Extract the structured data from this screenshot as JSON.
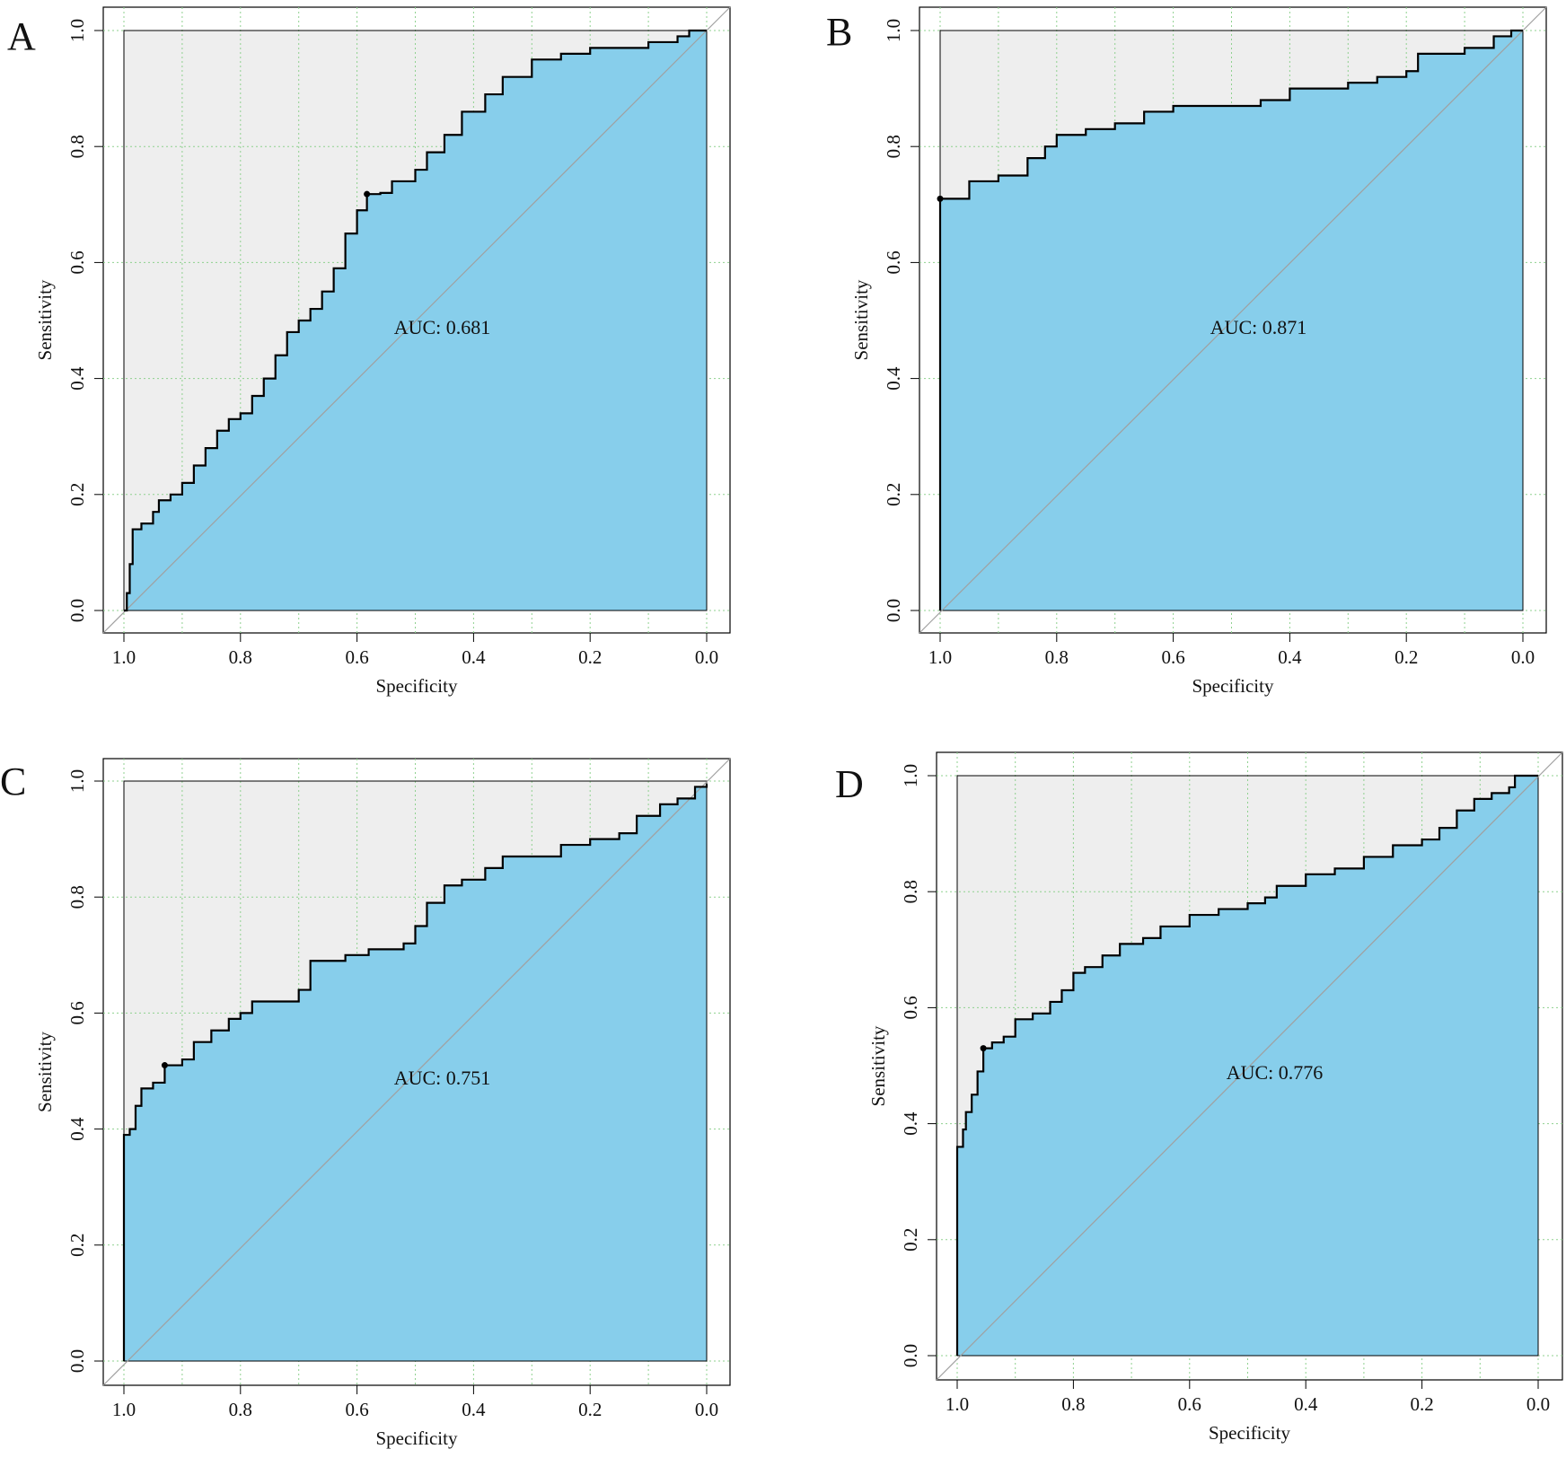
{
  "figure": {
    "description_text": [],
    "colors": {
      "auc_fill": "#87CEEB",
      "upper_fill": "#EEEEEE",
      "curve": "#000000",
      "diagonal": "#A0A0A0",
      "grid": "#8FD18F"
    }
  },
  "chart_data": [
    {
      "type": "line",
      "panel_label": "A",
      "title": "",
      "xlabel": "Specificity",
      "ylabel": "Sensitivity",
      "auc_label": "AUC: 0.681",
      "xlim": [
        1.0,
        0.0
      ],
      "ylim": [
        0.0,
        1.0
      ],
      "xticks": [
        "1.0",
        "0.8",
        "0.6",
        "0.4",
        "0.2",
        "0.0"
      ],
      "yticks": [
        "0.0",
        "0.2",
        "0.4",
        "0.6",
        "0.8",
        "1.0"
      ],
      "grid": true,
      "threshold_point": [
        0.583,
        0.718
      ],
      "points": [
        [
          1.0,
          0.0
        ],
        [
          0.995,
          0.03
        ],
        [
          0.99,
          0.08
        ],
        [
          0.985,
          0.14
        ],
        [
          0.97,
          0.15
        ],
        [
          0.95,
          0.17
        ],
        [
          0.94,
          0.19
        ],
        [
          0.92,
          0.2
        ],
        [
          0.9,
          0.22
        ],
        [
          0.88,
          0.25
        ],
        [
          0.86,
          0.28
        ],
        [
          0.84,
          0.31
        ],
        [
          0.82,
          0.33
        ],
        [
          0.8,
          0.34
        ],
        [
          0.78,
          0.37
        ],
        [
          0.76,
          0.4
        ],
        [
          0.74,
          0.44
        ],
        [
          0.72,
          0.48
        ],
        [
          0.7,
          0.5
        ],
        [
          0.68,
          0.52
        ],
        [
          0.66,
          0.55
        ],
        [
          0.64,
          0.59
        ],
        [
          0.62,
          0.65
        ],
        [
          0.6,
          0.69
        ],
        [
          0.583,
          0.718
        ],
        [
          0.56,
          0.72
        ],
        [
          0.54,
          0.74
        ],
        [
          0.5,
          0.76
        ],
        [
          0.48,
          0.79
        ],
        [
          0.45,
          0.82
        ],
        [
          0.42,
          0.86
        ],
        [
          0.38,
          0.89
        ],
        [
          0.35,
          0.92
        ],
        [
          0.3,
          0.95
        ],
        [
          0.25,
          0.96
        ],
        [
          0.2,
          0.97
        ],
        [
          0.1,
          0.98
        ],
        [
          0.05,
          0.99
        ],
        [
          0.03,
          1.0
        ],
        [
          0.0,
          1.0
        ]
      ]
    },
    {
      "type": "line",
      "panel_label": "B",
      "title": "",
      "xlabel": "Specificity",
      "ylabel": "Sensitivity",
      "auc_label": "AUC: 0.871",
      "xlim": [
        1.0,
        0.0
      ],
      "ylim": [
        0.0,
        1.0
      ],
      "xticks": [
        "1.0",
        "0.8",
        "0.6",
        "0.4",
        "0.2",
        "0.0"
      ],
      "yticks": [
        "0.0",
        "0.2",
        "0.4",
        "0.6",
        "0.8",
        "1.0"
      ],
      "grid": true,
      "threshold_point": [
        1.0,
        0.71
      ],
      "points": [
        [
          1.0,
          0.0
        ],
        [
          1.0,
          0.71
        ],
        [
          0.96,
          0.71
        ],
        [
          0.95,
          0.74
        ],
        [
          0.9,
          0.75
        ],
        [
          0.85,
          0.78
        ],
        [
          0.82,
          0.8
        ],
        [
          0.8,
          0.82
        ],
        [
          0.75,
          0.83
        ],
        [
          0.7,
          0.84
        ],
        [
          0.65,
          0.86
        ],
        [
          0.6,
          0.87
        ],
        [
          0.5,
          0.87
        ],
        [
          0.45,
          0.88
        ],
        [
          0.4,
          0.9
        ],
        [
          0.3,
          0.91
        ],
        [
          0.25,
          0.92
        ],
        [
          0.2,
          0.93
        ],
        [
          0.18,
          0.96
        ],
        [
          0.1,
          0.97
        ],
        [
          0.05,
          0.99
        ],
        [
          0.02,
          1.0
        ],
        [
          0.0,
          1.0
        ]
      ]
    },
    {
      "type": "line",
      "panel_label": "C",
      "title": "",
      "xlabel": "Specificity",
      "ylabel": "Sensitivity",
      "auc_label": "AUC: 0.751",
      "xlim": [
        1.0,
        0.0
      ],
      "ylim": [
        0.0,
        1.0
      ],
      "xticks": [
        "1.0",
        "0.8",
        "0.6",
        "0.4",
        "0.2",
        "0.0"
      ],
      "yticks": [
        "0.0",
        "0.2",
        "0.4",
        "0.6",
        "0.8",
        "1.0"
      ],
      "grid": true,
      "threshold_point": [
        0.93,
        0.51
      ],
      "points": [
        [
          1.0,
          0.0
        ],
        [
          1.0,
          0.39
        ],
        [
          0.99,
          0.4
        ],
        [
          0.98,
          0.44
        ],
        [
          0.97,
          0.47
        ],
        [
          0.95,
          0.48
        ],
        [
          0.93,
          0.51
        ],
        [
          0.9,
          0.52
        ],
        [
          0.88,
          0.55
        ],
        [
          0.85,
          0.57
        ],
        [
          0.82,
          0.59
        ],
        [
          0.8,
          0.6
        ],
        [
          0.78,
          0.62
        ],
        [
          0.72,
          0.62
        ],
        [
          0.7,
          0.64
        ],
        [
          0.68,
          0.69
        ],
        [
          0.62,
          0.7
        ],
        [
          0.58,
          0.71
        ],
        [
          0.52,
          0.72
        ],
        [
          0.5,
          0.75
        ],
        [
          0.48,
          0.79
        ],
        [
          0.45,
          0.82
        ],
        [
          0.42,
          0.83
        ],
        [
          0.38,
          0.85
        ],
        [
          0.35,
          0.87
        ],
        [
          0.3,
          0.87
        ],
        [
          0.25,
          0.89
        ],
        [
          0.2,
          0.9
        ],
        [
          0.15,
          0.91
        ],
        [
          0.12,
          0.94
        ],
        [
          0.08,
          0.96
        ],
        [
          0.05,
          0.97
        ],
        [
          0.02,
          0.99
        ],
        [
          0.0,
          0.995
        ]
      ]
    },
    {
      "type": "line",
      "panel_label": "D",
      "title": "",
      "xlabel": "Specificity",
      "ylabel": "Sensitivity",
      "auc_label": "AUC: 0.776",
      "xlim": [
        1.0,
        0.0
      ],
      "ylim": [
        0.0,
        1.0
      ],
      "xticks": [
        "1.0",
        "0.8",
        "0.6",
        "0.4",
        "0.2",
        "0.0"
      ],
      "yticks": [
        "0.0",
        "0.2",
        "0.4",
        "0.6",
        "0.8",
        "1.0"
      ],
      "grid": true,
      "threshold_point": [
        0.955,
        0.53
      ],
      "points": [
        [
          1.0,
          0.0
        ],
        [
          1.0,
          0.36
        ],
        [
          0.99,
          0.39
        ],
        [
          0.985,
          0.42
        ],
        [
          0.975,
          0.45
        ],
        [
          0.965,
          0.49
        ],
        [
          0.955,
          0.53
        ],
        [
          0.94,
          0.54
        ],
        [
          0.92,
          0.55
        ],
        [
          0.9,
          0.58
        ],
        [
          0.87,
          0.59
        ],
        [
          0.84,
          0.61
        ],
        [
          0.82,
          0.63
        ],
        [
          0.8,
          0.66
        ],
        [
          0.78,
          0.67
        ],
        [
          0.75,
          0.69
        ],
        [
          0.72,
          0.71
        ],
        [
          0.68,
          0.72
        ],
        [
          0.65,
          0.74
        ],
        [
          0.6,
          0.76
        ],
        [
          0.55,
          0.77
        ],
        [
          0.5,
          0.78
        ],
        [
          0.47,
          0.79
        ],
        [
          0.45,
          0.81
        ],
        [
          0.4,
          0.83
        ],
        [
          0.35,
          0.84
        ],
        [
          0.3,
          0.86
        ],
        [
          0.25,
          0.88
        ],
        [
          0.2,
          0.89
        ],
        [
          0.17,
          0.91
        ],
        [
          0.14,
          0.94
        ],
        [
          0.11,
          0.96
        ],
        [
          0.08,
          0.97
        ],
        [
          0.05,
          0.98
        ],
        [
          0.04,
          1.0
        ],
        [
          0.0,
          1.0
        ]
      ]
    }
  ]
}
